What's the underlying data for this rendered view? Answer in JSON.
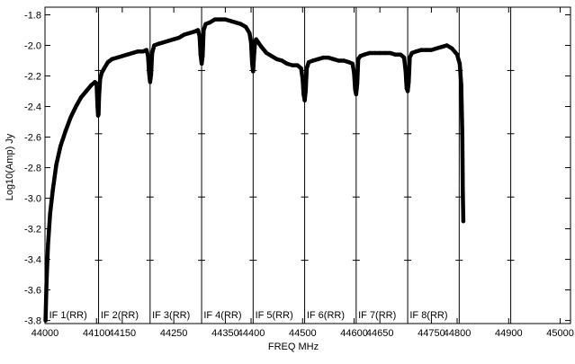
{
  "chart_data": {
    "type": "line",
    "xlabel": "FREQ MHz",
    "ylabel": "Log10(Amp) Jy",
    "xlim": [
      44000,
      45020
    ],
    "ylim": [
      -3.82,
      -1.75
    ],
    "grid": false,
    "x_ticks": [
      {
        "value": 44000,
        "label": "44000"
      },
      {
        "value": 44100,
        "label": "44100"
      },
      {
        "value": 44150,
        "label": "44150"
      },
      {
        "value": 44250,
        "label": "44250"
      },
      {
        "value": 44350,
        "label": "44350"
      },
      {
        "value": 44400,
        "label": "44400"
      },
      {
        "value": 44500,
        "label": "44500"
      },
      {
        "value": 44600,
        "label": "44600"
      },
      {
        "value": 44650,
        "label": "44650"
      },
      {
        "value": 44750,
        "label": "44750"
      },
      {
        "value": 44800,
        "label": "44800"
      },
      {
        "value": 44900,
        "label": "44900"
      },
      {
        "value": 45000,
        "label": "45000"
      }
    ],
    "y_ticks": [
      {
        "value": -1.8,
        "label": "-1.8"
      },
      {
        "value": -2.0,
        "label": "-2.0"
      },
      {
        "value": -2.2,
        "label": "-2.2"
      },
      {
        "value": -2.4,
        "label": "-2.4"
      },
      {
        "value": -2.6,
        "label": "-2.6"
      },
      {
        "value": -2.8,
        "label": "-2.8"
      },
      {
        "value": -3.0,
        "label": "-3.0"
      },
      {
        "value": -3.2,
        "label": "-3.2"
      },
      {
        "value": -3.4,
        "label": "-3.4"
      },
      {
        "value": -3.6,
        "label": "-3.6"
      },
      {
        "value": -3.8,
        "label": "-3.8"
      }
    ],
    "if_boundaries": [
      44000,
      44104,
      44204,
      44304,
      44404,
      44504,
      44604,
      44704,
      44804,
      44904,
      45020
    ],
    "if_labels": [
      {
        "label": "IF 1(RR)",
        "x": 44008
      },
      {
        "label": "IF 2(RR)",
        "x": 44108
      },
      {
        "label": "IF 3(RR)",
        "x": 44208
      },
      {
        "label": "IF 4(RR)",
        "x": 44308
      },
      {
        "label": "IF 5(RR)",
        "x": 44408
      },
      {
        "label": "IF 6(RR)",
        "x": 44508
      },
      {
        "label": "IF 7(RR)",
        "x": 44608
      },
      {
        "label": "IF 8(RR)",
        "x": 44708
      }
    ],
    "series": [
      {
        "color": "#000000",
        "points": [
          [
            44001,
            -3.8
          ],
          [
            44003,
            -3.55
          ],
          [
            44006,
            -3.3
          ],
          [
            44010,
            -3.1
          ],
          [
            44015,
            -2.95
          ],
          [
            44022,
            -2.78
          ],
          [
            44030,
            -2.66
          ],
          [
            44040,
            -2.56
          ],
          [
            44050,
            -2.47
          ],
          [
            44060,
            -2.4
          ],
          [
            44070,
            -2.34
          ],
          [
            44080,
            -2.3
          ],
          [
            44090,
            -2.26
          ],
          [
            44097,
            -2.24
          ],
          [
            44100,
            -2.25
          ],
          [
            44102,
            -2.4
          ],
          [
            44103,
            -2.46
          ],
          [
            44104,
            -2.45
          ],
          [
            44105,
            -2.33
          ],
          [
            44107,
            -2.22
          ],
          [
            44110,
            -2.18
          ],
          [
            44115,
            -2.15
          ],
          [
            44122,
            -2.11
          ],
          [
            44130,
            -2.09
          ],
          [
            44140,
            -2.08
          ],
          [
            44150,
            -2.07
          ],
          [
            44160,
            -2.06
          ],
          [
            44170,
            -2.05
          ],
          [
            44180,
            -2.04
          ],
          [
            44190,
            -2.04
          ],
          [
            44197,
            -2.03
          ],
          [
            44200,
            -2.07
          ],
          [
            44202,
            -2.18
          ],
          [
            44204,
            -2.24
          ],
          [
            44206,
            -2.19
          ],
          [
            44208,
            -2.05
          ],
          [
            44212,
            -2.0
          ],
          [
            44220,
            -1.99
          ],
          [
            44230,
            -1.98
          ],
          [
            44240,
            -1.97
          ],
          [
            44250,
            -1.96
          ],
          [
            44260,
            -1.95
          ],
          [
            44270,
            -1.93
          ],
          [
            44280,
            -1.92
          ],
          [
            44290,
            -1.91
          ],
          [
            44297,
            -1.9
          ],
          [
            44300,
            -1.94
          ],
          [
            44302,
            -2.06
          ],
          [
            44304,
            -2.12
          ],
          [
            44306,
            -2.07
          ],
          [
            44308,
            -1.9
          ],
          [
            44312,
            -1.86
          ],
          [
            44320,
            -1.85
          ],
          [
            44330,
            -1.83
          ],
          [
            44340,
            -1.83
          ],
          [
            44350,
            -1.83
          ],
          [
            44360,
            -1.84
          ],
          [
            44370,
            -1.85
          ],
          [
            44380,
            -1.86
          ],
          [
            44390,
            -1.88
          ],
          [
            44397,
            -1.92
          ],
          [
            44400,
            -1.98
          ],
          [
            44402,
            -2.12
          ],
          [
            44404,
            -2.17
          ],
          [
            44406,
            -2.05
          ],
          [
            44408,
            -1.97
          ],
          [
            44410,
            -1.96
          ],
          [
            44414,
            -1.98
          ],
          [
            44420,
            -2.01
          ],
          [
            44430,
            -2.05
          ],
          [
            44440,
            -2.07
          ],
          [
            44450,
            -2.09
          ],
          [
            44460,
            -2.1
          ],
          [
            44470,
            -2.12
          ],
          [
            44480,
            -2.13
          ],
          [
            44490,
            -2.13
          ],
          [
            44497,
            -2.15
          ],
          [
            44500,
            -2.22
          ],
          [
            44502,
            -2.32
          ],
          [
            44504,
            -2.36
          ],
          [
            44506,
            -2.3
          ],
          [
            44508,
            -2.15
          ],
          [
            44512,
            -2.11
          ],
          [
            44520,
            -2.1
          ],
          [
            44530,
            -2.09
          ],
          [
            44540,
            -2.08
          ],
          [
            44550,
            -2.08
          ],
          [
            44560,
            -2.09
          ],
          [
            44570,
            -2.1
          ],
          [
            44580,
            -2.1
          ],
          [
            44590,
            -2.11
          ],
          [
            44597,
            -2.12
          ],
          [
            44600,
            -2.18
          ],
          [
            44602,
            -2.29
          ],
          [
            44604,
            -2.32
          ],
          [
            44606,
            -2.25
          ],
          [
            44608,
            -2.09
          ],
          [
            44612,
            -2.07
          ],
          [
            44620,
            -2.06
          ],
          [
            44630,
            -2.05
          ],
          [
            44640,
            -2.05
          ],
          [
            44650,
            -2.05
          ],
          [
            44660,
            -2.05
          ],
          [
            44670,
            -2.05
          ],
          [
            44680,
            -2.06
          ],
          [
            44690,
            -2.06
          ],
          [
            44697,
            -2.08
          ],
          [
            44700,
            -2.17
          ],
          [
            44702,
            -2.28
          ],
          [
            44704,
            -2.3
          ],
          [
            44706,
            -2.24
          ],
          [
            44708,
            -2.08
          ],
          [
            44712,
            -2.05
          ],
          [
            44720,
            -2.04
          ],
          [
            44730,
            -2.03
          ],
          [
            44740,
            -2.03
          ],
          [
            44750,
            -2.03
          ],
          [
            44760,
            -2.02
          ],
          [
            44770,
            -2.01
          ],
          [
            44780,
            -2.0
          ],
          [
            44790,
            -2.02
          ],
          [
            44800,
            -2.06
          ],
          [
            44805,
            -2.12
          ],
          [
            44808,
            -2.26
          ],
          [
            44810,
            -2.6
          ],
          [
            44811,
            -2.95
          ],
          [
            44812,
            -3.15
          ]
        ]
      }
    ]
  }
}
